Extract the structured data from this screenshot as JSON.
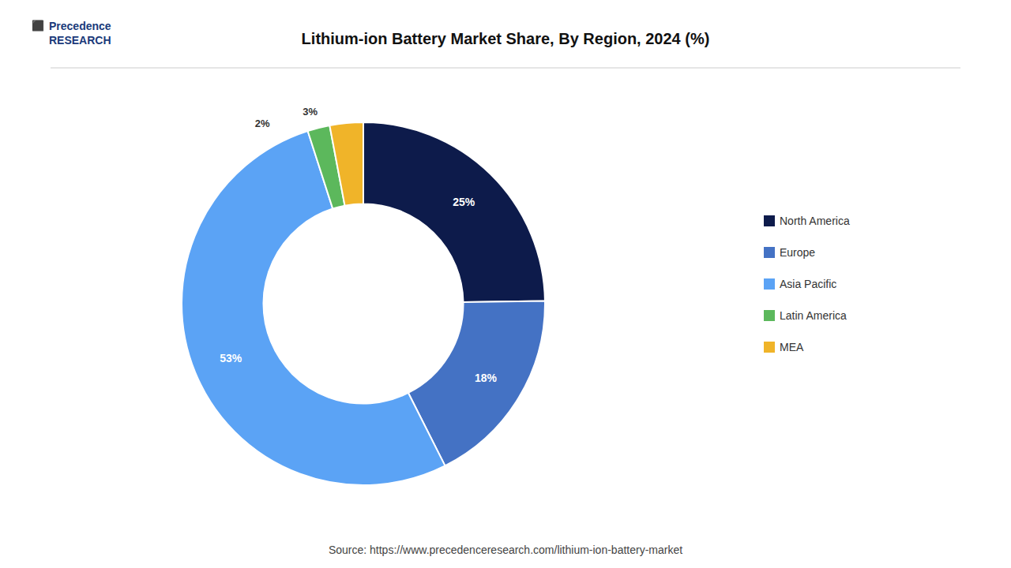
{
  "chart_data": {
    "type": "pie",
    "title": "Lithium-ion Battery Market Share, By Region, 2024 (%)",
    "categories": [
      "North America",
      "Europe",
      "Asia Pacific",
      "Latin America",
      "MEA"
    ],
    "values": [
      25,
      18,
      53,
      2,
      3
    ],
    "value_labels": [
      "25%",
      "18%",
      "53%",
      "2%",
      "3%"
    ],
    "colors": [
      "#0d1b4b",
      "#4472c4",
      "#5ba3f5",
      "#5cb85c",
      "#f0b429"
    ],
    "data_labels": true,
    "legend": "right",
    "annotations": [
      "Precedence\nRESEARCH",
      "⬛",
      "Source: https://www.precedenceresearch.com/lithium-ion-battery-market"
    ]
  }
}
